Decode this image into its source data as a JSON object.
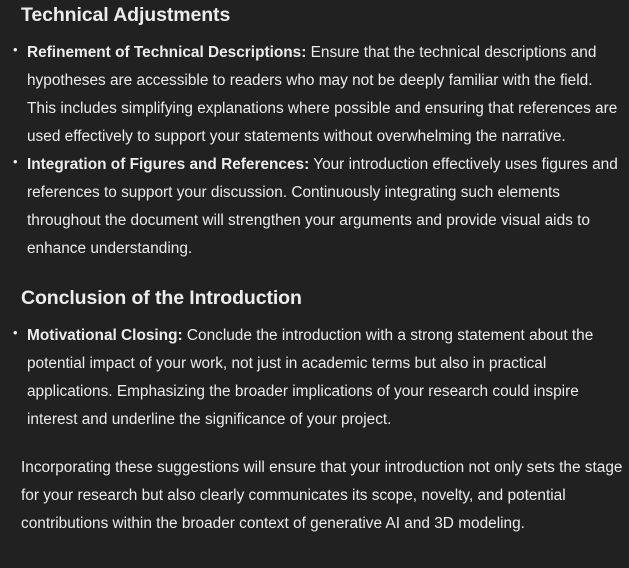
{
  "sections": [
    {
      "heading": "Technical Adjustments",
      "items": [
        {
          "title": "Refinement of Technical Descriptions:",
          "text": " Ensure that the technical descriptions and hypotheses are accessible to readers who may not be deeply familiar with the field. This includes simplifying explanations where possible and ensuring that references are used effectively to support your statements without overwhelming the narrative."
        },
        {
          "title": "Integration of Figures and References:",
          "text": " Your introduction effectively uses figures and references to support your discussion. Continuously integrating such elements throughout the document will strengthen your arguments and provide visual aids to enhance understanding."
        }
      ]
    },
    {
      "heading": "Conclusion of the Introduction",
      "items": [
        {
          "title": "Motivational Closing:",
          "text": " Conclude the introduction with a strong statement about the potential impact of your work, not just in academic terms but also in practical applications. Emphasizing the broader implications of your research could inspire interest and underline the significance of your project."
        }
      ]
    }
  ],
  "closing": "Incorporating these suggestions will ensure that your introduction not only sets the stage for your research but also clearly communicates its scope, novelty, and potential contributions within the broader context of generative AI and 3D modeling.",
  "bullet_glyph": "•",
  "colors": {
    "background": "#212121",
    "text": "#ececec"
  }
}
